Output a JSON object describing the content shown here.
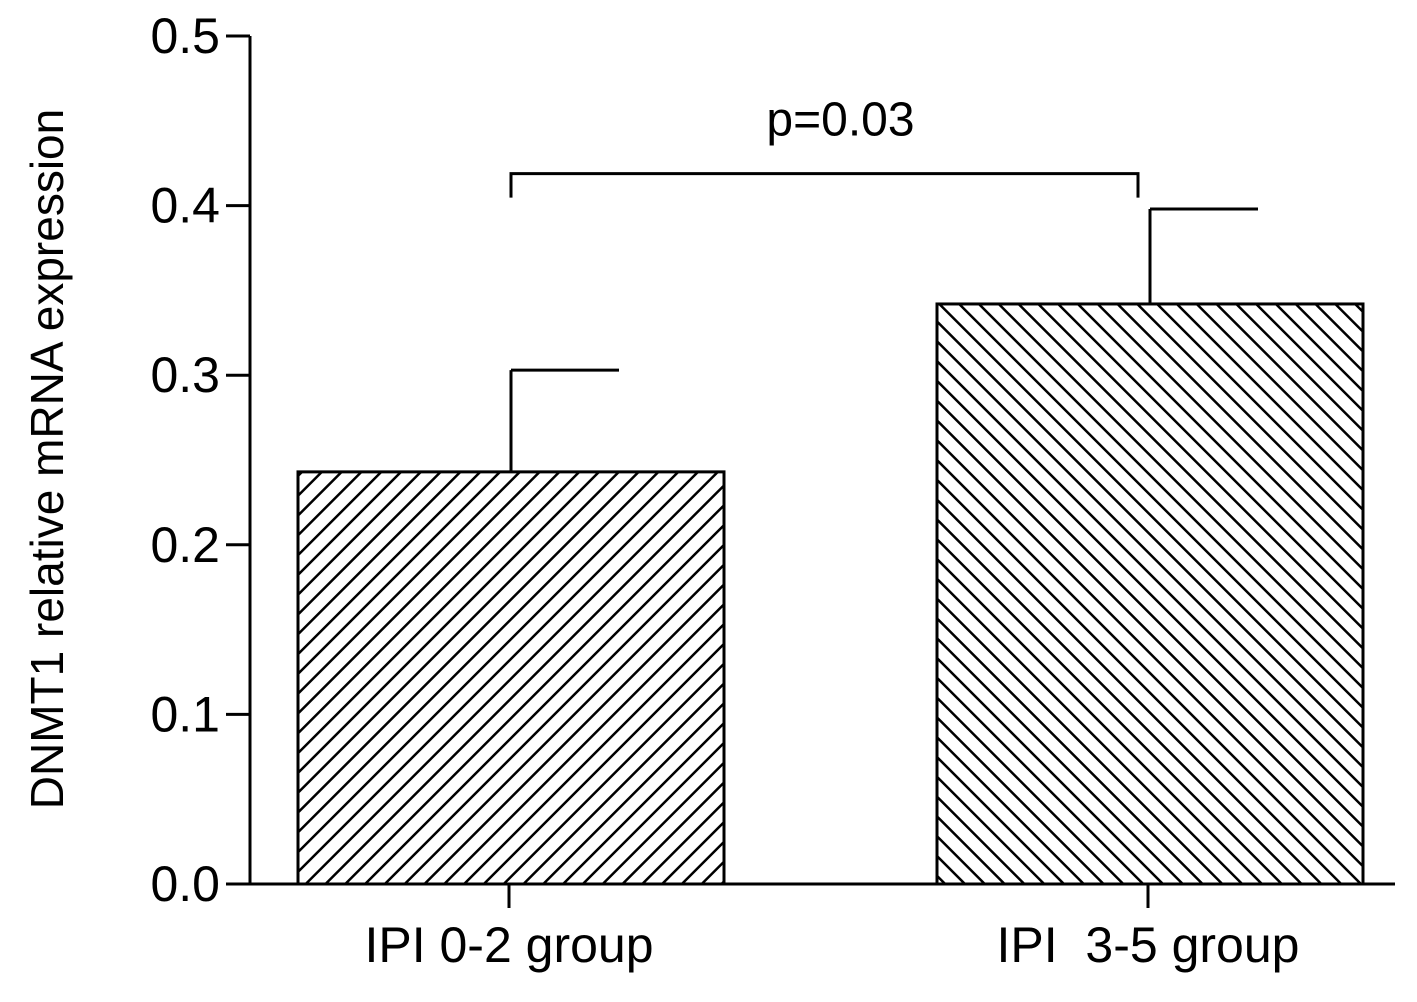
{
  "chart_data": {
    "type": "bar",
    "title": "",
    "xlabel": "",
    "ylabel": "DNMT1 relative mRNA expression",
    "categories": [
      "IPI 0-2 group",
      "IPI  3-5 group"
    ],
    "values": [
      0.243,
      0.342
    ],
    "error_upper": [
      0.303,
      0.398
    ],
    "ylim": [
      0.0,
      0.5
    ],
    "yticks": [
      0.0,
      0.1,
      0.2,
      0.3,
      0.4,
      0.5
    ],
    "ytick_labels": [
      "0.0",
      "0.1",
      "0.2",
      "0.3",
      "0.4",
      "0.5"
    ],
    "bar_patterns": [
      "diagonal-hatch-right",
      "diagonal-hatch-left"
    ],
    "grid": false,
    "legend": "none",
    "annotation": {
      "text": "p=0.03",
      "between": [
        0,
        1
      ],
      "bracket_y": 0.42,
      "bracket_drop_to": 0.41
    },
    "colors": {
      "ink": "#000000",
      "bar_fill": "#ffffff"
    }
  }
}
